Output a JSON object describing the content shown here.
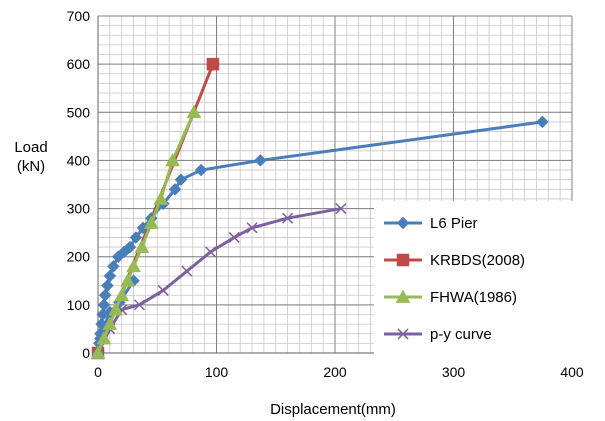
{
  "chart_data": {
    "type": "line",
    "xlabel": "Displacement(mm)",
    "ylabel_lines": [
      "Load",
      "(kN)"
    ],
    "xlim": [
      0,
      400
    ],
    "ylim": [
      0,
      700
    ],
    "xticks": [
      0,
      100,
      200,
      300,
      400
    ],
    "yticks": [
      0,
      100,
      200,
      300,
      400,
      500,
      600,
      700
    ],
    "grid": {
      "major": true,
      "minor_x_step": 10,
      "minor_y_step": 20
    },
    "legend_position": "bottom-right",
    "series": [
      {
        "name": "L6 Pier",
        "color": "#4a7ebb",
        "marker": "diamond",
        "x": [
          0,
          1,
          2,
          3,
          4,
          5,
          6,
          8,
          10,
          13,
          17,
          22,
          27,
          32,
          38,
          45,
          55,
          65,
          70,
          87,
          137,
          375
        ],
        "y": [
          0,
          20,
          40,
          60,
          80,
          100,
          120,
          140,
          160,
          180,
          200,
          210,
          220,
          240,
          260,
          280,
          310,
          340,
          360,
          380,
          400,
          480
        ]
      },
      {
        "name": "KRBDS(2008)",
        "color": "#be4b48",
        "marker": "square",
        "x": [
          0,
          97
        ],
        "y": [
          0,
          600
        ]
      },
      {
        "name": "FHWA(1986)",
        "color": "#98b954",
        "marker": "triangle",
        "x": [
          0,
          5,
          10,
          15,
          20,
          25,
          30,
          37,
          45,
          53,
          63,
          81
        ],
        "y": [
          0,
          30,
          60,
          90,
          120,
          150,
          180,
          220,
          270,
          320,
          400,
          500
        ]
      },
      {
        "name": "p-y curve",
        "color": "#7d60a0",
        "marker": "x",
        "x": [
          0,
          10,
          20,
          35,
          55,
          75,
          95,
          115,
          130,
          160,
          205
        ],
        "y": [
          0,
          50,
          90,
          100,
          130,
          170,
          210,
          240,
          260,
          280,
          300
        ]
      },
      {
        "name": "",
        "color": "#4a7ebb",
        "marker": "diamond",
        "x": [
          0,
          2,
          5,
          10,
          18,
          30
        ],
        "y": [
          0,
          30,
          55,
          85,
          105,
          150
        ]
      }
    ]
  }
}
